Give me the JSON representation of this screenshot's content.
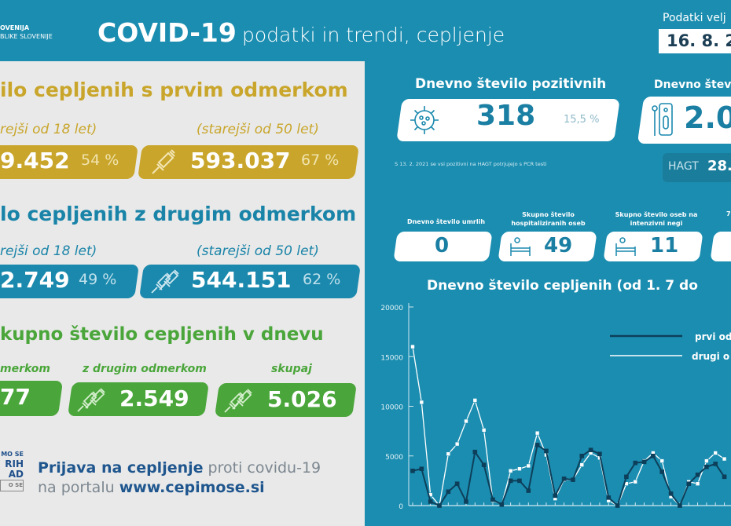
{
  "header": {
    "logo_line1": "OVENIJA",
    "logo_line2": "BLIKE SLOVENIJE",
    "title_bold": "COVID-19",
    "title_light": "podatki in trendi, cepljenje",
    "date_label": "Podatki velj",
    "date_value": "16. 8. 2"
  },
  "first_dose": {
    "heading": "ilo cepljenih s prvim odmerkom",
    "sub18": "rejši od 18 let)",
    "sub50": "(starejši od 50 let)",
    "value18": "9.452",
    "pct18": "54 %",
    "value50": "593.037",
    "pct50": "67 %",
    "color": "#c9a62b"
  },
  "second_dose": {
    "heading": "lo cepljenih z drugim odmerkom",
    "sub18": "rejši od 18 let)",
    "sub50": "(starejši od 50 let)",
    "value18": "2.749",
    "pct18": "49 %",
    "value50": "544.151",
    "pct50": "62 %",
    "color": "#1a89ad"
  },
  "daily_total": {
    "heading": "kupno število cepljenih v dnevu",
    "label_first": "merkom",
    "label_second": "z drugim odmerkom",
    "label_total": "skupaj",
    "value_first": "77",
    "value_second": "2.549",
    "value_total": "5.026",
    "color": "#4aa63a"
  },
  "signup": {
    "logo_l1": "MO SE",
    "logo_l2": "RIH",
    "logo_l3": "AD",
    "logo_l4": "O SE",
    "bold1": "Prijava na cepljenje",
    "light1": " proti covidu-19",
    "light2": "na portalu ",
    "bold2": "www.cepimose.si"
  },
  "positive": {
    "title": "Dnevno število pozitivnih",
    "value": "318",
    "pct": "15,5 %",
    "footnote": "S 13. 2. 2021 se vsi pozitivni na HAGT potrjujejo s PCR testi",
    "icon": "virus-icon"
  },
  "tests": {
    "title": "Dnevno števi",
    "value": "2.0",
    "hagt_label": "HAGT",
    "hagt_value": "28.",
    "icon": "test-kit-icon"
  },
  "stats": [
    {
      "label": "Dnevno število umrlih",
      "value": "0"
    },
    {
      "label": "Skupno število hospitaliziranih oseb",
      "value": "49",
      "icon": "hospital-bed-icon"
    },
    {
      "label": "Skupno število oseb na intenzivni negi",
      "value": "11",
      "icon": "hospital-bed-icon"
    },
    {
      "label": "7",
      "value": ""
    }
  ],
  "chart_data": {
    "type": "line",
    "title": "Dnevno število cepljenih (od 1. 7 do",
    "ylim": [
      0,
      20000
    ],
    "yticks": [
      "0",
      "5000",
      "10000",
      "15000",
      "20000"
    ],
    "legend": "top-right",
    "series": [
      {
        "name": "prvi od",
        "color": "#0d3f5a",
        "values": [
          3500,
          3700,
          400,
          0,
          1400,
          2200,
          400,
          5400,
          4100,
          600,
          100,
          2500,
          2500,
          1500,
          6100,
          5500,
          1000,
          2700,
          2600,
          5000,
          5600,
          5200,
          800,
          0,
          2900,
          4300,
          4400,
          5000,
          3400,
          1200,
          0,
          2200,
          3100,
          3900,
          4200,
          2900
        ]
      },
      {
        "name": "drugi o",
        "color": "#ffffff",
        "values": [
          16000,
          10400,
          1100,
          0,
          5200,
          6200,
          8500,
          10600,
          7600,
          500,
          100,
          3500,
          3700,
          4000,
          7300,
          5100,
          700,
          2600,
          2600,
          4100,
          5300,
          4800,
          500,
          0,
          2200,
          2400,
          4500,
          5300,
          4500,
          900,
          0,
          2400,
          2200,
          4500,
          5300,
          4700
        ]
      }
    ]
  }
}
